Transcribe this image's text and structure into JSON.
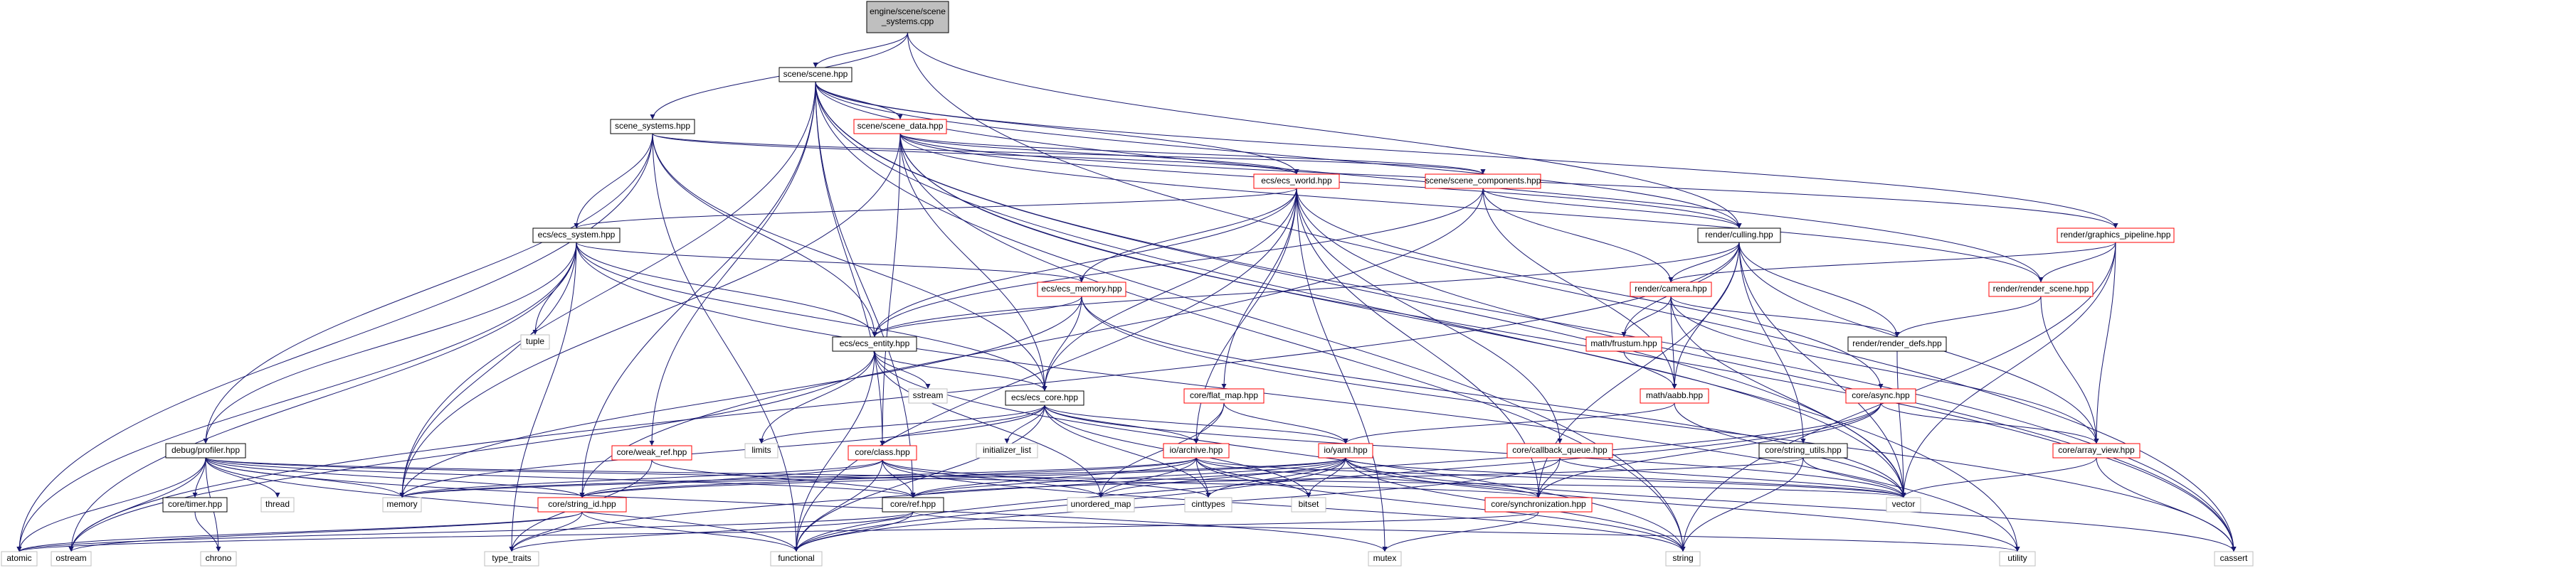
{
  "colors": {
    "edge": "#191970",
    "normal_border": "#000000",
    "linked_border": "#ff0000",
    "external_border": "#bfbfbf",
    "root_fill": "#bfbfbf",
    "node_fill": "#ffffff",
    "text": "#000000",
    "external_text": "#000000"
  },
  "nodes": [
    {
      "id": "root",
      "label": [
        "engine/scene/scene",
        "_systems.cpp"
      ],
      "kind": "root"
    },
    {
      "id": "scene",
      "label": [
        "scene/scene.hpp"
      ],
      "kind": "normal"
    },
    {
      "id": "scene_systems",
      "label": [
        "scene_systems.hpp"
      ],
      "kind": "normal"
    },
    {
      "id": "scene_data",
      "label": [
        "scene/scene_data.hpp"
      ],
      "kind": "linked"
    },
    {
      "id": "ecs_world",
      "label": [
        "ecs/ecs_world.hpp"
      ],
      "kind": "linked"
    },
    {
      "id": "scene_components",
      "label": [
        "scene/scene_components.hpp"
      ],
      "kind": "linked"
    },
    {
      "id": "render_culling",
      "label": [
        "render/culling.hpp"
      ],
      "kind": "normal"
    },
    {
      "id": "graphics_pipeline",
      "label": [
        "render/graphics_pipeline.hpp"
      ],
      "kind": "linked"
    },
    {
      "id": "ecs_system",
      "label": [
        "ecs/ecs_system.hpp"
      ],
      "kind": "normal"
    },
    {
      "id": "ecs_memory",
      "label": [
        "ecs/ecs_memory.hpp"
      ],
      "kind": "linked"
    },
    {
      "id": "render_camera",
      "label": [
        "render/camera.hpp"
      ],
      "kind": "linked"
    },
    {
      "id": "render_scene",
      "label": [
        "render/render_scene.hpp"
      ],
      "kind": "linked"
    },
    {
      "id": "tuple",
      "label": [
        "tuple"
      ],
      "kind": "external"
    },
    {
      "id": "ecs_entity",
      "label": [
        "ecs/ecs_entity.hpp"
      ],
      "kind": "normal"
    },
    {
      "id": "math_frustum",
      "label": [
        "math/frustum.hpp"
      ],
      "kind": "linked"
    },
    {
      "id": "render_defs",
      "label": [
        "render/render_defs.hpp"
      ],
      "kind": "normal"
    },
    {
      "id": "sstream",
      "label": [
        "sstream"
      ],
      "kind": "external"
    },
    {
      "id": "flat_map",
      "label": [
        "core/flat_map.hpp"
      ],
      "kind": "linked"
    },
    {
      "id": "math_aabb",
      "label": [
        "math/aabb.hpp"
      ],
      "kind": "linked"
    },
    {
      "id": "core_async",
      "label": [
        "core/async.hpp"
      ],
      "kind": "linked"
    },
    {
      "id": "ecs_core",
      "label": [
        "ecs/ecs_core.hpp"
      ],
      "kind": "normal"
    },
    {
      "id": "limits",
      "label": [
        "limits"
      ],
      "kind": "external"
    },
    {
      "id": "initializer_list",
      "label": [
        "initializer_list"
      ],
      "kind": "external"
    },
    {
      "id": "weak_ref",
      "label": [
        "core/weak_ref.hpp"
      ],
      "kind": "linked"
    },
    {
      "id": "core_class",
      "label": [
        "core/class.hpp"
      ],
      "kind": "linked"
    },
    {
      "id": "io_archive",
      "label": [
        "io/archive.hpp"
      ],
      "kind": "linked"
    },
    {
      "id": "io_yaml",
      "label": [
        "io/yaml.hpp"
      ],
      "kind": "linked"
    },
    {
      "id": "callback_queue",
      "label": [
        "core/callback_queue.hpp"
      ],
      "kind": "linked"
    },
    {
      "id": "string_utils",
      "label": [
        "core/string_utils.hpp"
      ],
      "kind": "normal"
    },
    {
      "id": "array_view",
      "label": [
        "core/array_view.hpp"
      ],
      "kind": "linked"
    },
    {
      "id": "debug_profiler",
      "label": [
        "debug/profiler.hpp"
      ],
      "kind": "normal"
    },
    {
      "id": "thread",
      "label": [
        "thread"
      ],
      "kind": "external"
    },
    {
      "id": "core_timer",
      "label": [
        "core/timer.hpp"
      ],
      "kind": "normal"
    },
    {
      "id": "memory",
      "label": [
        "memory"
      ],
      "kind": "external"
    },
    {
      "id": "string_id",
      "label": [
        "core/string_id.hpp"
      ],
      "kind": "linked"
    },
    {
      "id": "core_ref",
      "label": [
        "core/ref.hpp"
      ],
      "kind": "normal"
    },
    {
      "id": "unordered_map",
      "label": [
        "unordered_map"
      ],
      "kind": "external"
    },
    {
      "id": "cinttypes",
      "label": [
        "cinttypes"
      ],
      "kind": "external"
    },
    {
      "id": "bitset",
      "label": [
        "bitset"
      ],
      "kind": "external"
    },
    {
      "id": "synchronization",
      "label": [
        "core/synchronization.hpp"
      ],
      "kind": "linked"
    },
    {
      "id": "vector",
      "label": [
        "vector"
      ],
      "kind": "external"
    },
    {
      "id": "atomic",
      "label": [
        "atomic"
      ],
      "kind": "external"
    },
    {
      "id": "ostream",
      "label": [
        "ostream"
      ],
      "kind": "external"
    },
    {
      "id": "chrono",
      "label": [
        "chrono"
      ],
      "kind": "external"
    },
    {
      "id": "type_traits",
      "label": [
        "type_traits"
      ],
      "kind": "external"
    },
    {
      "id": "functional",
      "label": [
        "functional"
      ],
      "kind": "external"
    },
    {
      "id": "mutex",
      "label": [
        "mutex"
      ],
      "kind": "external"
    },
    {
      "id": "string",
      "label": [
        "string"
      ],
      "kind": "external"
    },
    {
      "id": "utility",
      "label": [
        "utility"
      ],
      "kind": "external"
    },
    {
      "id": "cassert",
      "label": [
        "cassert"
      ],
      "kind": "external"
    }
  ],
  "edges": [
    [
      "root",
      "scene"
    ],
    [
      "root",
      "scene_systems"
    ],
    [
      "root",
      "render_culling"
    ],
    [
      "root",
      "cassert"
    ],
    [
      "scene",
      "scene_data"
    ],
    [
      "scene",
      "ecs_world"
    ],
    [
      "scene",
      "render_culling"
    ],
    [
      "scene",
      "graphics_pipeline"
    ],
    [
      "scene",
      "render_scene"
    ],
    [
      "scene",
      "vector"
    ],
    [
      "scene",
      "string"
    ],
    [
      "scene",
      "utility"
    ],
    [
      "scene",
      "memory"
    ],
    [
      "scene",
      "core_ref"
    ],
    [
      "scene",
      "string_id"
    ],
    [
      "scene",
      "weak_ref"
    ],
    [
      "scene",
      "core_class"
    ],
    [
      "scene",
      "cassert"
    ],
    [
      "scene_systems",
      "ecs_world"
    ],
    [
      "scene_systems",
      "scene_components"
    ],
    [
      "scene_systems",
      "ecs_system"
    ],
    [
      "scene_systems",
      "ecs_entity"
    ],
    [
      "scene_systems",
      "ecs_core"
    ],
    [
      "scene_systems",
      "debug_profiler"
    ],
    [
      "scene_systems",
      "atomic"
    ],
    [
      "scene_systems",
      "functional"
    ],
    [
      "scene_data",
      "ecs_world"
    ],
    [
      "scene_data",
      "scene_components"
    ],
    [
      "scene_data",
      "render_culling"
    ],
    [
      "scene_data",
      "graphics_pipeline"
    ],
    [
      "scene_data",
      "render_scene"
    ],
    [
      "scene_data",
      "ecs_core"
    ],
    [
      "scene_data",
      "core_class"
    ],
    [
      "scene_data",
      "memory"
    ],
    [
      "scene_data",
      "vector"
    ],
    [
      "scene_data",
      "string"
    ],
    [
      "scene_data",
      "cassert"
    ],
    [
      "ecs_world",
      "ecs_system"
    ],
    [
      "ecs_world",
      "ecs_memory"
    ],
    [
      "ecs_world",
      "ecs_entity"
    ],
    [
      "ecs_world",
      "ecs_core"
    ],
    [
      "ecs_world",
      "flat_map"
    ],
    [
      "ecs_world",
      "core_async"
    ],
    [
      "ecs_world",
      "callback_queue"
    ],
    [
      "ecs_world",
      "synchronization"
    ],
    [
      "ecs_world",
      "mutex"
    ],
    [
      "ecs_world",
      "functional"
    ],
    [
      "ecs_world",
      "cassert"
    ],
    [
      "ecs_world",
      "io_archive"
    ],
    [
      "scene_components",
      "render_culling"
    ],
    [
      "scene_components",
      "render_camera"
    ],
    [
      "scene_components",
      "math_aabb"
    ],
    [
      "scene_components",
      "ecs_entity"
    ],
    [
      "scene_components",
      "string_id"
    ],
    [
      "render_culling",
      "render_camera"
    ],
    [
      "render_culling",
      "math_frustum"
    ],
    [
      "render_culling",
      "math_aabb"
    ],
    [
      "render_culling",
      "render_defs"
    ],
    [
      "render_culling",
      "array_view"
    ],
    [
      "render_culling",
      "string_utils"
    ],
    [
      "render_culling",
      "vector"
    ],
    [
      "render_culling",
      "synchronization"
    ],
    [
      "render_culling",
      "ecs_entity"
    ],
    [
      "render_culling",
      "ostream"
    ],
    [
      "graphics_pipeline",
      "render_camera"
    ],
    [
      "graphics_pipeline",
      "render_scene"
    ],
    [
      "graphics_pipeline",
      "array_view"
    ],
    [
      "graphics_pipeline",
      "vector"
    ],
    [
      "graphics_pipeline",
      "string"
    ],
    [
      "ecs_system",
      "tuple"
    ],
    [
      "ecs_system",
      "ecs_memory"
    ],
    [
      "ecs_system",
      "ecs_entity"
    ],
    [
      "ecs_system",
      "ecs_core"
    ],
    [
      "ecs_system",
      "debug_profiler"
    ],
    [
      "ecs_system",
      "memory"
    ],
    [
      "ecs_system",
      "atomic"
    ],
    [
      "ecs_system",
      "type_traits"
    ],
    [
      "ecs_system",
      "utility"
    ],
    [
      "ecs_system",
      "ostream"
    ],
    [
      "ecs_memory",
      "ecs_entity"
    ],
    [
      "ecs_memory",
      "ecs_core"
    ],
    [
      "ecs_memory",
      "vector"
    ],
    [
      "ecs_memory",
      "cassert"
    ],
    [
      "ecs_memory",
      "memory"
    ],
    [
      "render_camera",
      "math_frustum"
    ],
    [
      "render_camera",
      "math_aabb"
    ],
    [
      "render_camera",
      "render_defs"
    ],
    [
      "render_camera",
      "array_view"
    ],
    [
      "render_camera",
      "vector"
    ],
    [
      "render_scene",
      "render_defs"
    ],
    [
      "render_scene",
      "array_view"
    ],
    [
      "ecs_entity",
      "ecs_core"
    ],
    [
      "ecs_entity",
      "sstream"
    ],
    [
      "ecs_entity",
      "limits"
    ],
    [
      "ecs_entity",
      "string"
    ],
    [
      "ecs_entity",
      "functional"
    ],
    [
      "ecs_entity",
      "unordered_map"
    ],
    [
      "ecs_entity",
      "ostream"
    ],
    [
      "math_frustum",
      "math_aabb"
    ],
    [
      "render_defs",
      "vector"
    ],
    [
      "flat_map",
      "io_yaml"
    ],
    [
      "flat_map",
      "io_archive"
    ],
    [
      "flat_map",
      "unordered_map"
    ],
    [
      "math_aabb",
      "io_yaml"
    ],
    [
      "math_aabb",
      "vector"
    ],
    [
      "core_async",
      "array_view"
    ],
    [
      "core_async",
      "synchronization"
    ],
    [
      "core_async",
      "functional"
    ],
    [
      "core_async",
      "type_traits"
    ],
    [
      "ecs_core",
      "limits"
    ],
    [
      "ecs_core",
      "initializer_list"
    ],
    [
      "ecs_core",
      "io_archive"
    ],
    [
      "ecs_core",
      "io_yaml"
    ],
    [
      "ecs_core",
      "core_class"
    ],
    [
      "ecs_core",
      "memory"
    ],
    [
      "ecs_core",
      "functional"
    ],
    [
      "ecs_core",
      "bitset"
    ],
    [
      "ecs_core",
      "cinttypes"
    ],
    [
      "ecs_core",
      "vector"
    ],
    [
      "weak_ref",
      "core_ref"
    ],
    [
      "weak_ref",
      "type_traits"
    ],
    [
      "core_class",
      "string_id"
    ],
    [
      "core_class",
      "core_ref"
    ],
    [
      "core_class",
      "functional"
    ],
    [
      "core_class",
      "unordered_map"
    ],
    [
      "core_class",
      "memory"
    ],
    [
      "core_class",
      "string"
    ],
    [
      "core_class",
      "cinttypes"
    ],
    [
      "io_archive",
      "string_id"
    ],
    [
      "io_archive",
      "core_ref"
    ],
    [
      "io_archive",
      "memory"
    ],
    [
      "io_archive",
      "unordered_map"
    ],
    [
      "io_archive",
      "cinttypes"
    ],
    [
      "io_archive",
      "bitset"
    ],
    [
      "io_archive",
      "vector"
    ],
    [
      "io_archive",
      "synchronization"
    ],
    [
      "io_archive",
      "string"
    ],
    [
      "io_yaml",
      "string_id"
    ],
    [
      "io_yaml",
      "core_ref"
    ],
    [
      "io_yaml",
      "memory"
    ],
    [
      "io_yaml",
      "unordered_map"
    ],
    [
      "io_yaml",
      "cinttypes"
    ],
    [
      "io_yaml",
      "bitset"
    ],
    [
      "io_yaml",
      "vector"
    ],
    [
      "io_yaml",
      "string"
    ],
    [
      "io_yaml",
      "functional"
    ],
    [
      "io_yaml",
      "utility"
    ],
    [
      "io_yaml",
      "cassert"
    ],
    [
      "callback_queue",
      "synchronization"
    ],
    [
      "callback_queue",
      "functional"
    ],
    [
      "callback_queue",
      "vector"
    ],
    [
      "string_utils",
      "vector"
    ],
    [
      "string_utils",
      "string"
    ],
    [
      "string_utils",
      "core_ref"
    ],
    [
      "array_view",
      "vector"
    ],
    [
      "array_view",
      "cassert"
    ],
    [
      "debug_profiler",
      "thread"
    ],
    [
      "debug_profiler",
      "core_timer"
    ],
    [
      "debug_profiler",
      "memory"
    ],
    [
      "debug_profiler",
      "string_id"
    ],
    [
      "debug_profiler",
      "core_ref"
    ],
    [
      "debug_profiler",
      "synchronization"
    ],
    [
      "debug_profiler",
      "vector"
    ],
    [
      "debug_profiler",
      "atomic"
    ],
    [
      "debug_profiler",
      "ostream"
    ],
    [
      "debug_profiler",
      "chrono"
    ],
    [
      "debug_profiler",
      "functional"
    ],
    [
      "debug_profiler",
      "mutex"
    ],
    [
      "core_timer",
      "chrono"
    ],
    [
      "string_id",
      "atomic"
    ],
    [
      "string_id",
      "type_traits"
    ],
    [
      "string_id",
      "functional"
    ],
    [
      "string_id",
      "ostream"
    ],
    [
      "core_ref",
      "type_traits"
    ],
    [
      "core_ref",
      "functional"
    ],
    [
      "core_ref",
      "utility"
    ],
    [
      "core_ref",
      "atomic"
    ],
    [
      "synchronization",
      "mutex"
    ],
    [
      "synchronization",
      "atomic"
    ]
  ]
}
